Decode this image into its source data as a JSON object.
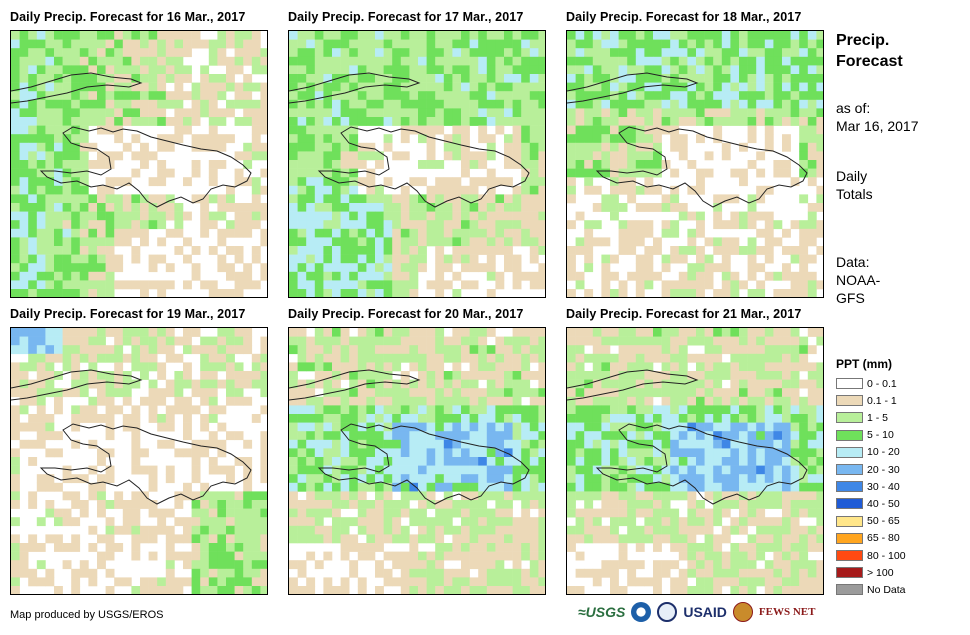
{
  "panels": [
    {
      "title": "Daily Precip. Forecast for 16 Mar., 2017",
      "seed": 16,
      "profile": "wet-west"
    },
    {
      "title": "Daily Precip. Forecast for 17 Mar., 2017",
      "seed": 17,
      "profile": "wet-southwest"
    },
    {
      "title": "Daily Precip. Forecast for 18 Mar., 2017",
      "seed": 18,
      "profile": "wet-north"
    },
    {
      "title": "Daily Precip. Forecast for 19 Mar., 2017",
      "seed": 19,
      "profile": "dry"
    },
    {
      "title": "Daily Precip. Forecast for 20 Mar., 2017",
      "seed": 20,
      "profile": "wet-central"
    },
    {
      "title": "Daily Precip. Forecast for 21 Mar., 2017",
      "seed": 21,
      "profile": "wet-central"
    }
  ],
  "sidebar": {
    "title_line1": "Precip.",
    "title_line2": "Forecast",
    "asof_label": "as of:",
    "asof_date": "Mar 16, 2017",
    "totals_line1": "Daily",
    "totals_line2": "Totals",
    "data_label": "Data:",
    "data_line1": "NOAA-",
    "data_line2": "GFS"
  },
  "legend": {
    "title": "PPT (mm)",
    "items": [
      {
        "label": "0 - 0.1",
        "color": "#ffffff"
      },
      {
        "label": "0.1 - 1",
        "color": "#ecd9b8"
      },
      {
        "label": "1 - 5",
        "color": "#b8ef9a"
      },
      {
        "label": "5 - 10",
        "color": "#6fe05b"
      },
      {
        "label": "10 - 20",
        "color": "#b7ecf5"
      },
      {
        "label": "20 - 30",
        "color": "#78b7f0"
      },
      {
        "label": "30 - 40",
        "color": "#3f87e6"
      },
      {
        "label": "40 - 50",
        "color": "#1f5bd6"
      },
      {
        "label": "50 - 65",
        "color": "#ffe68a"
      },
      {
        "label": "65 - 80",
        "color": "#ffa51f"
      },
      {
        "label": "80 - 100",
        "color": "#ff4a12"
      },
      {
        "label": "> 100",
        "color": "#a61a1a"
      },
      {
        "label": "No Data",
        "color": "#9b9b9b"
      }
    ]
  },
  "footer": {
    "credit": "Map produced by USGS/EROS",
    "logo_usgs": "≈USGS",
    "logo_usaid": "USAID",
    "logo_fews": "FEWS NET"
  }
}
